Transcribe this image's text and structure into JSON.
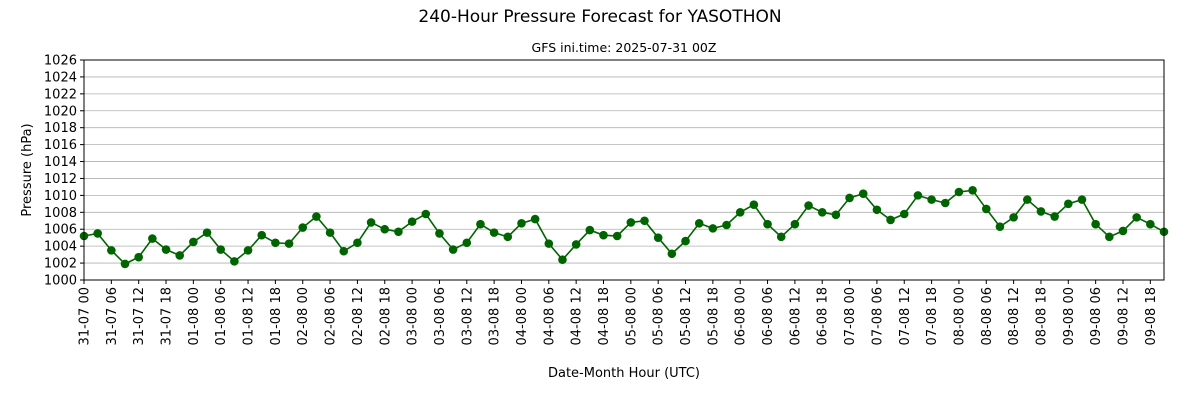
{
  "chart_data": {
    "type": "line",
    "title": "240-Hour Pressure Forecast for YASOTHON",
    "subtitle": "GFS ini.time: 2025-07-31 00Z",
    "xlabel": "Date-Month Hour (UTC)",
    "ylabel": "Pressure (hPa)",
    "ylim": [
      1000,
      1026
    ],
    "yticks": [
      1000,
      1002,
      1004,
      1006,
      1008,
      1010,
      1012,
      1014,
      1016,
      1018,
      1020,
      1022,
      1024,
      1026
    ],
    "grid": "horizontal",
    "line_color": "#006400",
    "x_step_hours": 3,
    "xticks": [
      "31-07 00",
      "31-07 06",
      "31-07 12",
      "31-07 18",
      "01-08 00",
      "01-08 06",
      "01-08 12",
      "01-08 18",
      "02-08 00",
      "02-08 06",
      "02-08 12",
      "02-08 18",
      "03-08 00",
      "03-08 06",
      "03-08 12",
      "03-08 18",
      "04-08 00",
      "04-08 06",
      "04-08 12",
      "04-08 18",
      "05-08 00",
      "05-08 06",
      "05-08 12",
      "05-08 18",
      "06-08 00",
      "06-08 06",
      "06-08 12",
      "06-08 18",
      "07-08 00",
      "07-08 06",
      "07-08 12",
      "07-08 18",
      "08-08 00",
      "08-08 06",
      "08-08 12",
      "08-08 18",
      "09-08 00",
      "09-08 06",
      "09-08 12",
      "09-08 18"
    ],
    "series": [
      {
        "values": [
          1005.2,
          1005.5,
          1003.5,
          1001.9,
          1002.7,
          1004.9,
          1003.6,
          1002.9,
          1004.5,
          1005.6,
          1003.6,
          1002.2,
          1003.5,
          1005.3,
          1004.4,
          1004.3,
          1006.2,
          1007.5,
          1005.6,
          1003.4,
          1004.4,
          1006.8,
          1006.0,
          1005.7,
          1006.9,
          1007.8,
          1005.5,
          1003.6,
          1004.4,
          1006.6,
          1005.6,
          1005.1,
          1006.7,
          1007.2,
          1004.3,
          1002.4,
          1004.2,
          1005.9,
          1005.3,
          1005.2,
          1006.8,
          1007.0,
          1005.0,
          1003.1,
          1004.6,
          1006.7,
          1006.1,
          1006.5,
          1008.0,
          1008.9,
          1006.6,
          1005.1,
          1006.6,
          1008.8,
          1008.0,
          1007.7,
          1009.7,
          1010.2,
          1008.3,
          1007.1,
          1007.8,
          1010.0,
          1009.5,
          1009.1,
          1010.4,
          1010.6,
          1008.4,
          1006.3,
          1007.4,
          1009.5,
          1008.1,
          1007.5,
          1009.0,
          1009.5,
          1006.6,
          1005.1,
          1005.8,
          1007.4,
          1006.6,
          1005.7
        ]
      }
    ]
  }
}
